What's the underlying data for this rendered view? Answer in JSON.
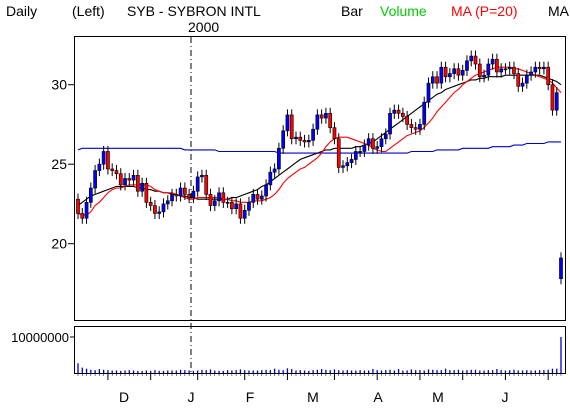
{
  "header": {
    "period": "Daily",
    "scale": "(Left)",
    "ticker": "SYB - SYBRON INTL",
    "year": "2000",
    "style": "Bar",
    "volume": "Volume",
    "ma": "MA (P=20)",
    "ma2": "MA"
  },
  "colors": {
    "up": "#0000ff",
    "down": "#ff0000",
    "ma20": "#ff0000",
    "ma50": "#000000",
    "ma200": "#0000cc",
    "volume_label": "#00cc00",
    "ma_label": "#ff0000",
    "grid": "#000000"
  },
  "chart_data": [
    {
      "type": "candlestick",
      "title": "SYB - SYBRON INTL",
      "yticks": [
        20,
        25,
        30
      ],
      "ylim": [
        15.2,
        33.0
      ],
      "xticks": [
        "D",
        "J",
        "F",
        "M",
        "A",
        "M",
        "J"
      ],
      "year_marker": "J",
      "grid": "none",
      "opens": [
        22.8,
        21.9,
        21.6,
        22.6,
        23.5,
        24.6,
        25.0,
        25.8,
        24.7,
        24.6,
        24.4,
        23.7,
        24.1,
        24.0,
        24.3,
        23.3,
        23.8,
        22.6,
        22.4,
        21.9,
        22.0,
        22.5,
        22.7,
        23.1,
        23.0,
        23.5,
        23.1,
        22.9,
        23.3,
        24.2,
        24.3,
        23.1,
        22.4,
        22.7,
        23.2,
        22.6,
        22.6,
        22.2,
        22.5,
        21.6,
        22.1,
        22.6,
        23.1,
        22.8,
        23.0,
        23.7,
        24.5,
        24.7,
        26.0,
        27.1,
        28.1,
        26.6,
        26.7,
        26.5,
        26.4,
        26.5,
        27.2,
        28.1,
        27.9,
        28.2,
        27.3,
        26.6,
        24.8,
        24.9,
        25.1,
        25.3,
        25.8,
        25.8,
        26.2,
        26.6,
        26.0,
        26.1,
        26.6,
        26.9,
        28.2,
        28.4,
        28.2,
        28.0,
        27.5,
        27.3,
        27.2,
        27.5,
        28.9,
        30.1,
        30.5,
        30.1,
        31.1,
        30.5,
        30.7,
        31.0,
        30.6,
        30.9,
        31.5,
        31.8,
        31.3,
        30.5,
        30.6,
        31.3,
        31.6,
        30.8,
        31.0,
        31.0,
        31.1,
        30.7,
        29.9,
        30.1,
        30.6,
        30.8,
        31.1,
        31.0,
        31.1,
        30.0,
        28.4,
        17.8
      ],
      "closes": [
        21.9,
        21.6,
        22.6,
        23.5,
        24.6,
        25.0,
        25.8,
        24.7,
        24.6,
        24.4,
        23.7,
        24.1,
        24.0,
        24.3,
        23.3,
        23.8,
        22.6,
        22.4,
        21.9,
        22.0,
        22.5,
        22.7,
        23.1,
        23.0,
        23.5,
        23.1,
        22.9,
        23.3,
        24.2,
        24.3,
        23.1,
        22.4,
        22.7,
        23.2,
        22.6,
        22.6,
        22.2,
        22.5,
        21.6,
        22.1,
        22.6,
        23.1,
        22.8,
        23.0,
        23.7,
        24.5,
        24.7,
        26.0,
        27.1,
        28.1,
        26.6,
        26.7,
        26.5,
        26.4,
        26.5,
        27.2,
        28.1,
        27.9,
        28.2,
        27.3,
        26.6,
        24.8,
        24.9,
        25.1,
        25.3,
        25.8,
        25.8,
        26.2,
        26.6,
        26.0,
        26.1,
        26.6,
        26.9,
        28.2,
        28.4,
        28.2,
        28.0,
        27.5,
        27.3,
        27.2,
        27.5,
        28.9,
        30.1,
        30.5,
        30.1,
        31.1,
        30.5,
        30.7,
        31.0,
        30.6,
        30.9,
        31.5,
        31.8,
        31.3,
        30.5,
        30.6,
        31.3,
        31.6,
        30.8,
        31.0,
        31.0,
        31.1,
        30.7,
        29.9,
        30.1,
        30.6,
        30.8,
        31.1,
        31.0,
        31.1,
        30.0,
        28.4,
        29.5,
        19.1
      ],
      "ma20": [
        21.9,
        21.8,
        21.8,
        22.0,
        22.4,
        22.6,
        22.9,
        23.2,
        23.4,
        23.5,
        23.5,
        23.6,
        23.7,
        23.7,
        23.7,
        23.7,
        23.7,
        23.6,
        23.4,
        23.3,
        23.2,
        23.2,
        23.2,
        23.1,
        23.0,
        22.9,
        22.8,
        22.8,
        22.9,
        22.9,
        22.9,
        22.9,
        22.9,
        22.9,
        22.8,
        22.8,
        22.7,
        22.7,
        22.6,
        22.6,
        22.6,
        22.7,
        22.7,
        22.7,
        22.8,
        22.9,
        23.1,
        23.4,
        23.8,
        24.1,
        24.3,
        24.5,
        24.7,
        24.8,
        25.0,
        25.2,
        25.4,
        25.7,
        26.1,
        26.4,
        26.6,
        26.7,
        26.7,
        26.7,
        26.6,
        26.5,
        26.4,
        26.3,
        26.2,
        26.0,
        25.9,
        25.8,
        25.8,
        26.0,
        26.2,
        26.4,
        26.6,
        26.8,
        26.9,
        27.0,
        27.1,
        27.3,
        27.6,
        27.9,
        28.3,
        28.6,
        28.9,
        29.2,
        29.5,
        29.7,
        30.0,
        30.2,
        30.4,
        30.6,
        30.7,
        30.8,
        30.9,
        31.0,
        31.1,
        31.1,
        31.1,
        31.1,
        31.0,
        31.0,
        30.9,
        30.8,
        30.7,
        30.6,
        30.5,
        30.4,
        30.3,
        30.1,
        29.8,
        29.5
      ],
      "ma50": [
        22.4,
        22.6,
        22.8,
        23.0,
        23.1,
        23.2,
        23.3,
        23.4,
        23.5,
        23.6,
        23.6,
        23.6,
        23.6,
        23.6,
        23.5,
        23.5,
        23.4,
        23.4,
        23.3,
        23.3,
        23.2,
        23.2,
        23.1,
        23.1,
        23.0,
        23.0,
        22.9,
        22.9,
        22.8,
        22.8,
        22.8,
        22.8,
        22.8,
        22.8,
        22.8,
        22.8,
        22.9,
        22.9,
        23.0,
        23.1,
        23.2,
        23.3,
        23.4,
        23.6,
        23.7,
        23.9,
        24.1,
        24.3,
        24.5,
        24.7,
        24.9,
        25.1,
        25.3,
        25.4,
        25.5,
        25.6,
        25.7,
        25.8,
        25.9,
        25.9,
        26.0,
        26.0,
        26.0,
        26.0,
        26.0,
        26.1,
        26.1,
        26.2,
        26.3,
        26.4,
        26.6,
        26.8,
        27.0,
        27.2,
        27.4,
        27.6,
        27.8,
        28.0,
        28.2,
        28.4,
        28.6,
        28.8,
        29.0,
        29.2,
        29.4,
        29.5,
        29.7,
        29.8,
        29.9,
        30.0,
        30.1,
        30.2,
        30.3,
        30.3,
        30.4,
        30.4,
        30.5,
        30.5,
        30.5,
        30.5,
        30.6,
        30.6,
        30.6,
        30.6,
        30.6,
        30.6,
        30.6,
        30.6,
        30.6,
        30.5,
        30.4,
        30.3,
        30.2,
        30.0
      ],
      "ma200": [
        25.9,
        26.0,
        26.0,
        26.0,
        26.0,
        26.0,
        26.0,
        26.0,
        26.0,
        26.0,
        26.0,
        26.0,
        26.0,
        26.0,
        26.0,
        26.0,
        26.0,
        26.0,
        26.0,
        26.0,
        26.0,
        26.0,
        26.0,
        26.0,
        26.0,
        25.9,
        25.9,
        25.9,
        25.9,
        25.9,
        25.9,
        25.9,
        25.9,
        25.8,
        25.8,
        25.8,
        25.8,
        25.8,
        25.8,
        25.8,
        25.8,
        25.8,
        25.8,
        25.8,
        25.8,
        25.8,
        25.8,
        25.7,
        25.7,
        25.7,
        25.7,
        25.7,
        25.7,
        25.7,
        25.7,
        25.7,
        25.7,
        25.7,
        25.7,
        25.7,
        25.7,
        25.7,
        25.7,
        25.7,
        25.7,
        25.7,
        25.7,
        25.7,
        25.7,
        25.7,
        25.7,
        25.7,
        25.7,
        25.7,
        25.7,
        25.7,
        25.7,
        25.7,
        25.8,
        25.8,
        25.8,
        25.8,
        25.8,
        25.8,
        25.9,
        25.9,
        25.9,
        25.9,
        25.9,
        25.9,
        26.0,
        26.0,
        26.0,
        26.0,
        26.0,
        26.0,
        26.0,
        26.1,
        26.1,
        26.1,
        26.1,
        26.1,
        26.2,
        26.2,
        26.2,
        26.3,
        26.3,
        26.3,
        26.3,
        26.3,
        26.4,
        26.4,
        26.4,
        26.4
      ]
    },
    {
      "type": "bar",
      "title": "Volume",
      "yticks": [
        10000000
      ],
      "ytick_labels": [
        "10000000"
      ],
      "ylim": [
        0,
        10000000
      ],
      "values": [
        2700000,
        1500000,
        1200000,
        900000,
        800000,
        1100000,
        900000,
        800000,
        700000,
        700000,
        600000,
        700000,
        800000,
        700000,
        600000,
        600000,
        700000,
        600000,
        800000,
        600000,
        600000,
        700000,
        700000,
        700000,
        900000,
        800000,
        700000,
        600000,
        700000,
        900000,
        800000,
        1000000,
        700000,
        600000,
        600000,
        800000,
        700000,
        800000,
        1000000,
        800000,
        700000,
        700000,
        700000,
        800000,
        900000,
        800000,
        1200000,
        900000,
        800000,
        1300000,
        1100000,
        700000,
        800000,
        700000,
        600000,
        800000,
        900000,
        1100000,
        900000,
        800000,
        1000000,
        800000,
        700000,
        800000,
        700000,
        700000,
        800000,
        700000,
        700000,
        1100000,
        800000,
        700000,
        800000,
        900000,
        700000,
        1100000,
        700000,
        700000,
        1000000,
        800000,
        800000,
        700000,
        1000000,
        900000,
        800000,
        800000,
        1200000,
        800000,
        800000,
        900000,
        700000,
        800000,
        900000,
        900000,
        700000,
        700000,
        800000,
        800000,
        1100000,
        800000,
        700000,
        800000,
        900000,
        700000,
        700000,
        800000,
        700000,
        700000,
        800000,
        800000,
        900000,
        1200000,
        1200000,
        10000000
      ]
    }
  ]
}
